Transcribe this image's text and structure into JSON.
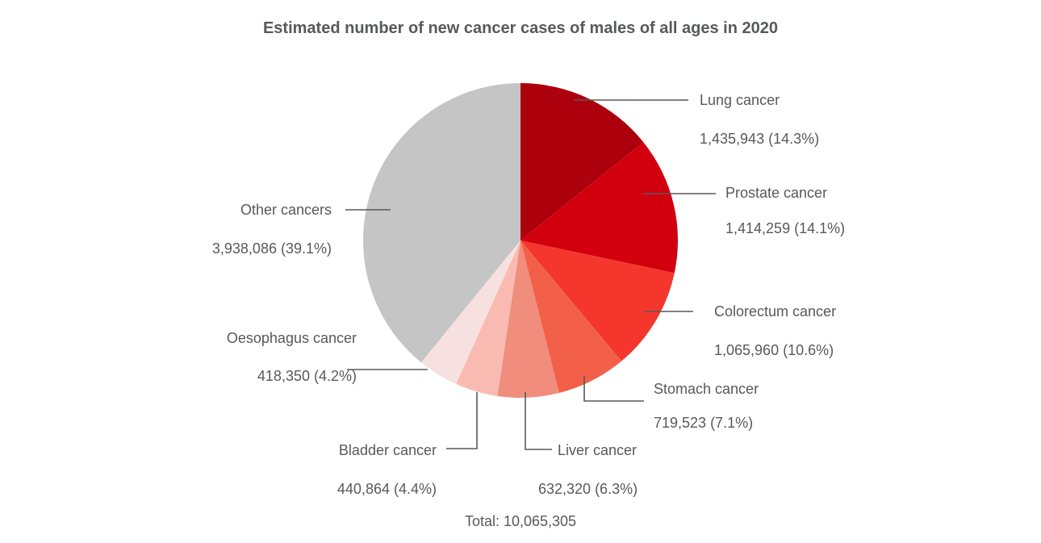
{
  "chart_data": {
    "type": "pie",
    "title": "Estimated number of new cancer cases of males of all ages in 2020",
    "total_label": "Total: 10,065,305",
    "slices": [
      {
        "name": "Lung cancer",
        "value": 1435943,
        "value_label": "1,435,943 (14.3%)",
        "percent": 14.3,
        "color": "#ad000d"
      },
      {
        "name": "Prostate cancer",
        "value": 1414259,
        "value_label": "1,414,259 (14.1%)",
        "percent": 14.1,
        "color": "#d2000f"
      },
      {
        "name": "Colorectum cancer",
        "value": 1065960,
        "value_label": "1,065,960 (10.6%)",
        "percent": 10.6,
        "color": "#f4362c"
      },
      {
        "name": "Stomach cancer",
        "value": 719523,
        "value_label": "719,523 (7.1%)",
        "percent": 7.1,
        "color": "#f2604a"
      },
      {
        "name": "Liver cancer",
        "value": 632320,
        "value_label": "632,320 (6.3%)",
        "percent": 6.3,
        "color": "#f08d7c"
      },
      {
        "name": "Bladder cancer",
        "value": 440864,
        "value_label": "440,864 (4.4%)",
        "percent": 4.4,
        "color": "#f9bbb1"
      },
      {
        "name": "Oesophagus cancer",
        "value": 418350,
        "value_label": "418,350 (4.2%)",
        "percent": 4.2,
        "color": "#f7e1e0"
      },
      {
        "name": "Other cancers",
        "value": 3938086,
        "value_label": "3,938,086 (39.1%)",
        "percent": 39.1,
        "color": "#c5c5c5"
      }
    ]
  }
}
